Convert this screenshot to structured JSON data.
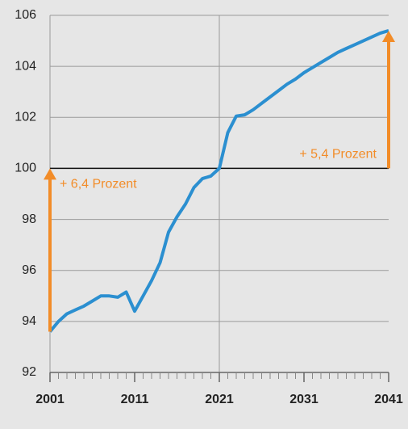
{
  "chart_data": {
    "type": "line",
    "x": [
      2001,
      2002,
      2003,
      2004,
      2005,
      2006,
      2007,
      2008,
      2009,
      2010,
      2011,
      2012,
      2013,
      2014,
      2015,
      2016,
      2017,
      2018,
      2019,
      2020,
      2021,
      2022,
      2023,
      2024,
      2025,
      2026,
      2027,
      2028,
      2029,
      2030,
      2031,
      2032,
      2033,
      2034,
      2035,
      2036,
      2037,
      2038,
      2039,
      2040,
      2041
    ],
    "series": [
      {
        "color": "#2b8fd0",
        "values": [
          93.6,
          94.0,
          94.3,
          94.45,
          94.6,
          94.8,
          95.0,
          95.0,
          94.95,
          95.15,
          94.4,
          95.0,
          95.6,
          96.3,
          97.5,
          98.1,
          98.6,
          99.25,
          99.6,
          99.7,
          100.0,
          101.4,
          102.05,
          102.1,
          102.3,
          102.55,
          102.8,
          103.05,
          103.3,
          103.5,
          103.75,
          103.95,
          104.15,
          104.35,
          104.55,
          104.7,
          104.85,
          105.0,
          105.15,
          105.3,
          105.4
        ]
      }
    ],
    "xlim": [
      2001,
      2041
    ],
    "xticks": [
      2001,
      2011,
      2021,
      2031,
      2041
    ],
    "ylim": [
      92,
      106
    ],
    "yticks": [
      92,
      94,
      96,
      98,
      100,
      102,
      104,
      106
    ],
    "grid": true,
    "reference_y": 100,
    "reference_x": 2021,
    "annotations": [
      {
        "text": "+ 6,4 Prozent",
        "color": "#f28c28"
      },
      {
        "text": "+ 5,4 Prozent",
        "color": "#f28c28"
      }
    ]
  }
}
